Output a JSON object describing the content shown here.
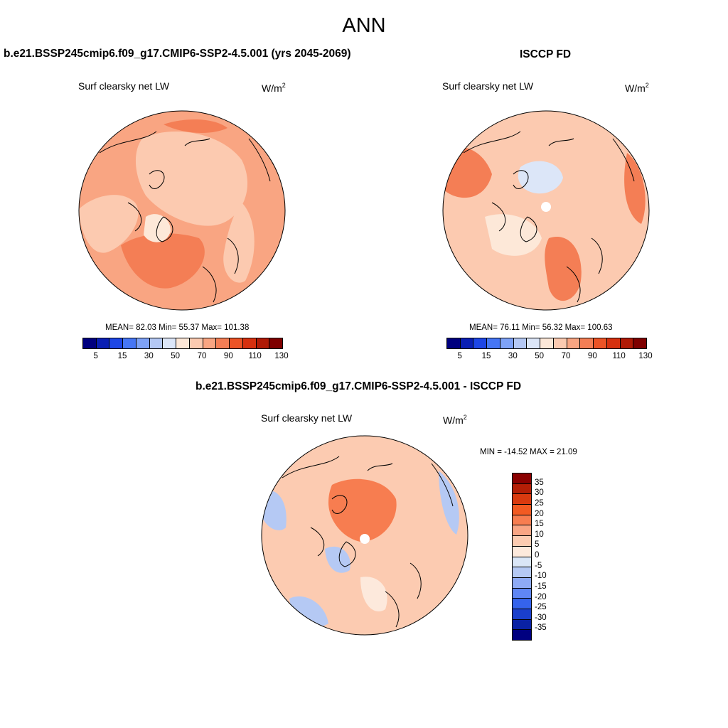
{
  "figure": {
    "title": "ANN"
  },
  "panels": [
    {
      "title": "b.e21.BSSP245cmip6.f09_g17.CMIP6-SSP2-4.5.001 (yrs 2045-2069)",
      "variable": "Surf clearsky net LW",
      "units_base": "W/m",
      "units_exp": "2",
      "stats_mean": "MEAN=  82.03   Min=  55.37   Max= 101.38"
    },
    {
      "title": "ISCCP FD",
      "variable": "Surf clearsky net LW",
      "units_base": "W/m",
      "units_exp": "2",
      "stats_mean": "MEAN=  76.11   Min=  56.32   Max= 100.63"
    },
    {
      "title": "b.e21.BSSP245cmip6.f09_g17.CMIP6-SSP2-4.5.001 - ISCCP FD",
      "variable": "Surf clearsky net LW",
      "units_base": "W/m",
      "units_exp": "2",
      "stats_mean": "MIN = -14.52 MAX =  21.09"
    }
  ],
  "colorbar_main": {
    "colors": [
      "#00007f",
      "#0a1fb4",
      "#1e46e6",
      "#4676f5",
      "#7ea2f7",
      "#b4c8f5",
      "#dce6f8",
      "#fde8d8",
      "#fccab0",
      "#f9a582",
      "#f47e55",
      "#ec5326",
      "#d6300f",
      "#b01a06",
      "#7f0000"
    ],
    "ticks": [
      "5",
      "15",
      "30",
      "50",
      "70",
      "90",
      "110",
      "130"
    ]
  },
  "colorbar_diff": {
    "colors_top_to_bottom": [
      "#8b0000",
      "#b41e06",
      "#d93a0f",
      "#f25a22",
      "#f77d50",
      "#f9a584",
      "#fccbb1",
      "#fde9dc",
      "#dae6f7",
      "#b5c9f4",
      "#8eaaf5",
      "#5f86f5",
      "#3563ec",
      "#1a3fcc",
      "#0a22a4",
      "#000080"
    ],
    "ticks": [
      "35",
      "30",
      "25",
      "20",
      "15",
      "10",
      "5",
      "0",
      "-5",
      "-10",
      "-15",
      "-20",
      "-25",
      "-30",
      "-35"
    ]
  },
  "map_colors": {
    "ocean_main": "#f9a582",
    "land_main": "#fccab0",
    "warm": "#f47e55",
    "cool": "#dce6f8",
    "pale": "#fde8d8",
    "diff_base": "#fccbb1",
    "diff_warm": "#f77d50",
    "diff_cool": "#b5c9f4",
    "diff_pale": "#fde9dc"
  }
}
